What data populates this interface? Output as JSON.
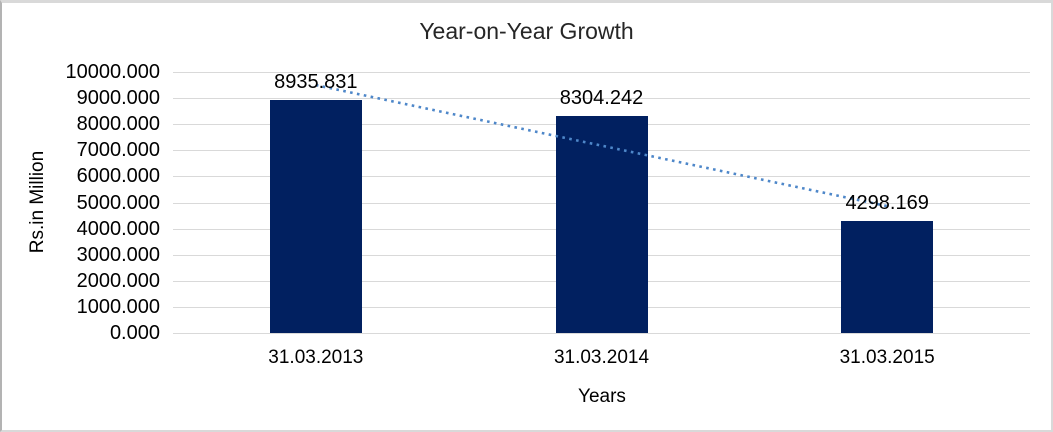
{
  "chart_data": {
    "type": "bar",
    "title": "Year-on-Year Growth",
    "categories": [
      "31.03.2013",
      "31.03.2014",
      "31.03.2015"
    ],
    "values": [
      8935.831,
      8304.242,
      4298.169
    ],
    "data_labels": [
      "8935.831",
      "8304.242",
      "4298.169"
    ],
    "xlabel": "Years",
    "ylabel": "Rs.in Million",
    "ylim": [
      0,
      10000
    ],
    "ytick_step": 1000,
    "ytick_labels": [
      "10000.000",
      "9000.000",
      "8000.000",
      "7000.000",
      "6000.000",
      "5000.000",
      "4000.000",
      "3000.000",
      "2000.000",
      "1000.000",
      "0.000"
    ],
    "grid": "horizontal",
    "legend": "none",
    "trendline": {
      "type": "linear",
      "style": "dotted"
    },
    "colors": {
      "bar": "#012060",
      "trendline": "#4e87c9",
      "gridline": "#d9d9d9",
      "label_text": "#000000",
      "title_text": "#262626",
      "background": "#ffffff"
    }
  }
}
